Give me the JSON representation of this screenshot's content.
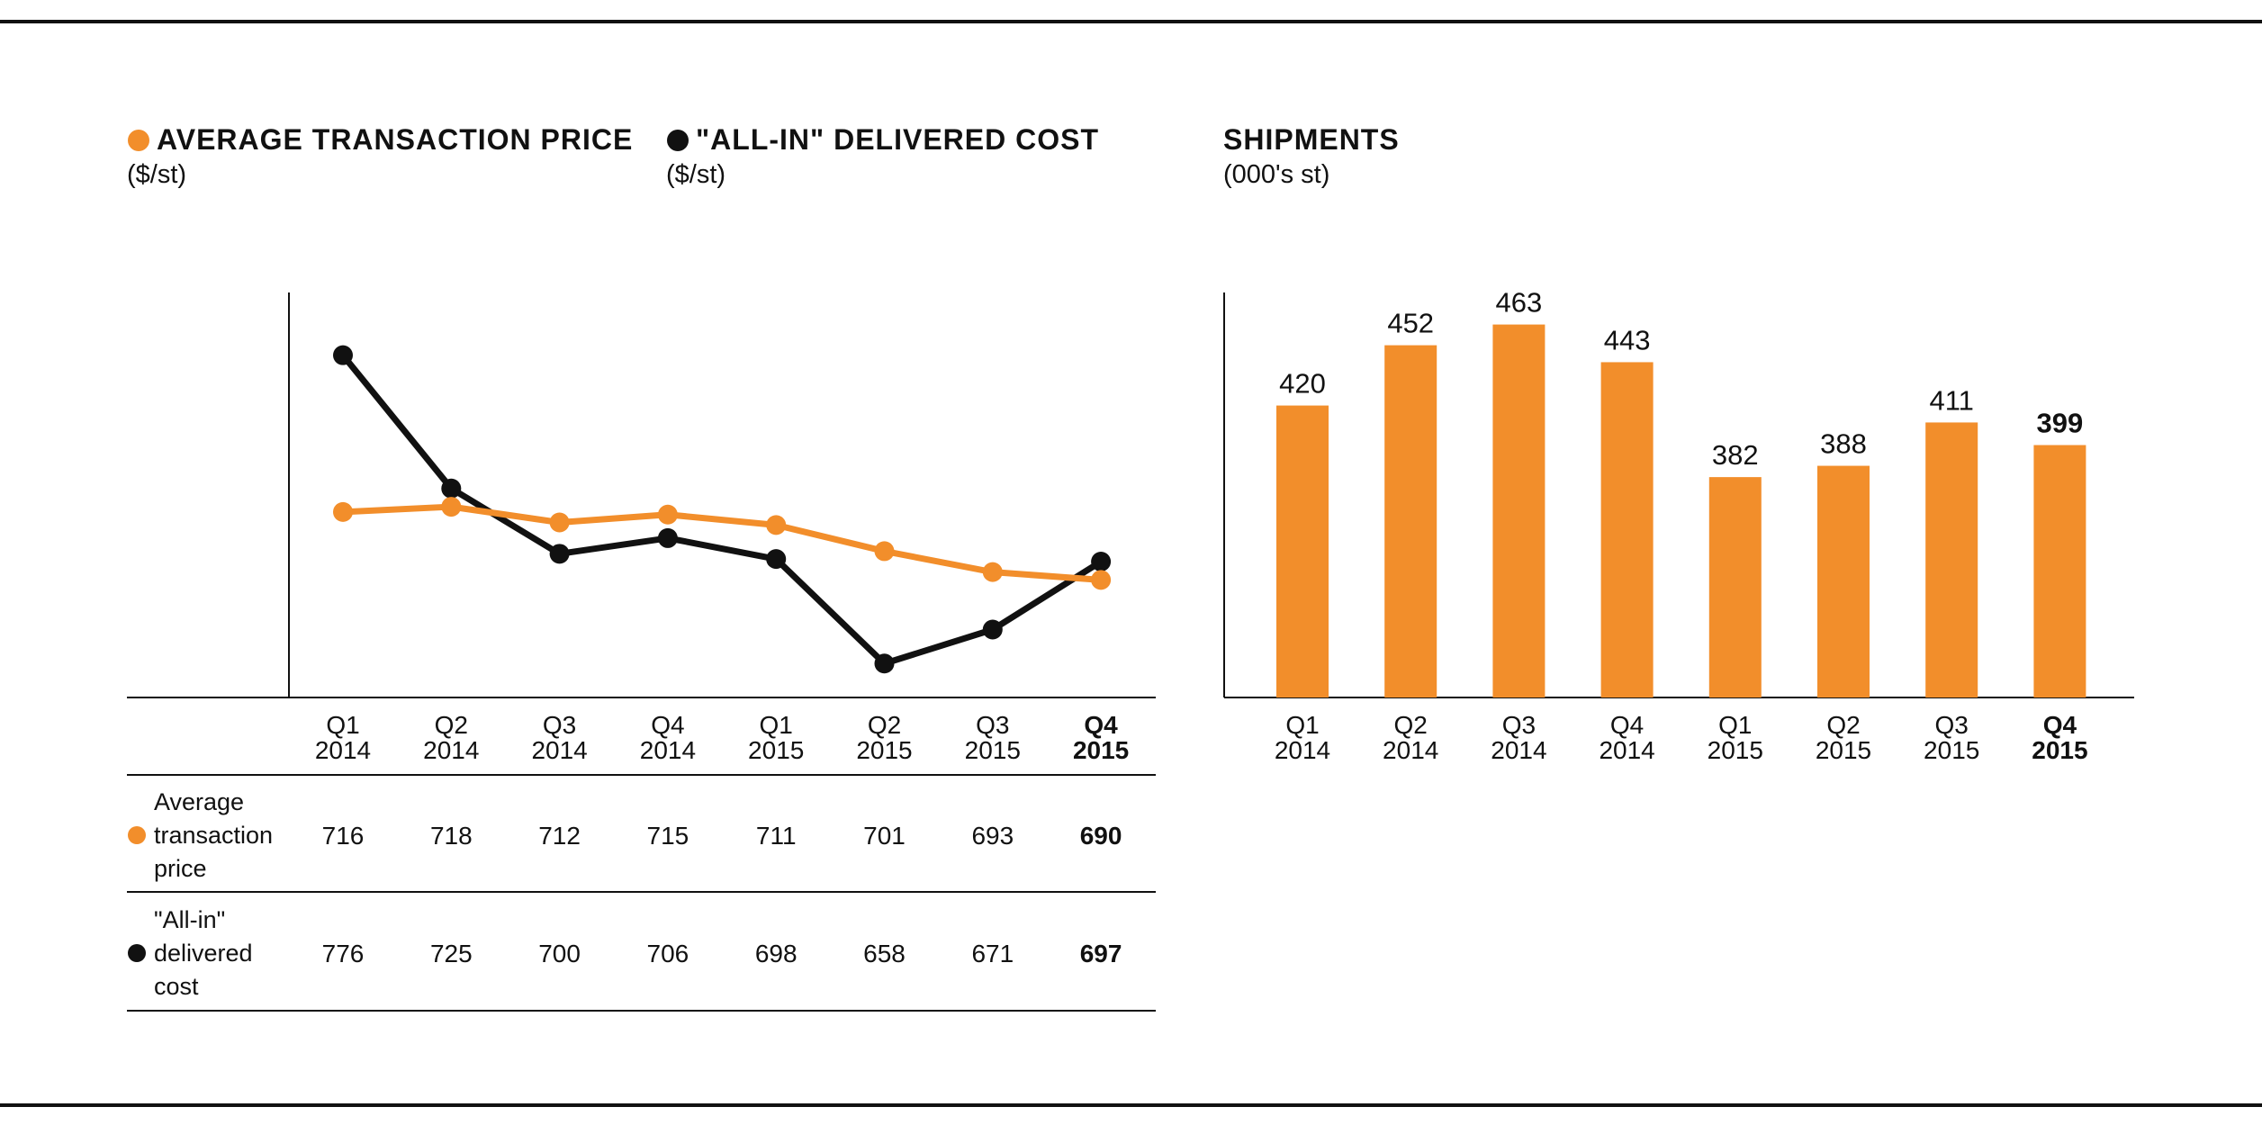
{
  "legend": {
    "price": {
      "label": "AVERAGE TRANSACTION PRICE",
      "unit": "($/st)"
    },
    "cost": {
      "label": "\"ALL-IN\" DELIVERED COST",
      "unit": "($/st)"
    },
    "shipments": {
      "label": "SHIPMENTS",
      "unit": "(000's st)"
    }
  },
  "colors": {
    "orange": "#F28E2B",
    "black": "#111111"
  },
  "chart_data": [
    {
      "type": "line",
      "categories": [
        [
          "Q1",
          "2014"
        ],
        [
          "Q2",
          "2014"
        ],
        [
          "Q3",
          "2014"
        ],
        [
          "Q4",
          "2014"
        ],
        [
          "Q1",
          "2015"
        ],
        [
          "Q2",
          "2015"
        ],
        [
          "Q3",
          "2015"
        ],
        [
          "Q4",
          "2015"
        ]
      ],
      "highlight_index": 7,
      "series": [
        {
          "name": "Average transaction price",
          "row_label": [
            "Average",
            "transaction",
            "price"
          ],
          "color": "#F28E2B",
          "values": [
            716,
            718,
            712,
            715,
            711,
            701,
            693,
            690
          ]
        },
        {
          "name": "\"All-in\" delivered cost",
          "row_label": [
            "\"All-in\"",
            "delivered",
            "cost"
          ],
          "color": "#111111",
          "values": [
            776,
            725,
            700,
            706,
            698,
            658,
            671,
            697
          ]
        }
      ],
      "ylim": [
        645,
        800
      ]
    },
    {
      "type": "bar",
      "categories": [
        [
          "Q1",
          "2014"
        ],
        [
          "Q2",
          "2014"
        ],
        [
          "Q3",
          "2014"
        ],
        [
          "Q4",
          "2014"
        ],
        [
          "Q1",
          "2015"
        ],
        [
          "Q2",
          "2015"
        ],
        [
          "Q3",
          "2015"
        ],
        [
          "Q4",
          "2015"
        ]
      ],
      "highlight_index": 7,
      "values": [
        420,
        452,
        463,
        443,
        382,
        388,
        411,
        399
      ],
      "ylim": [
        265,
        480
      ]
    }
  ]
}
